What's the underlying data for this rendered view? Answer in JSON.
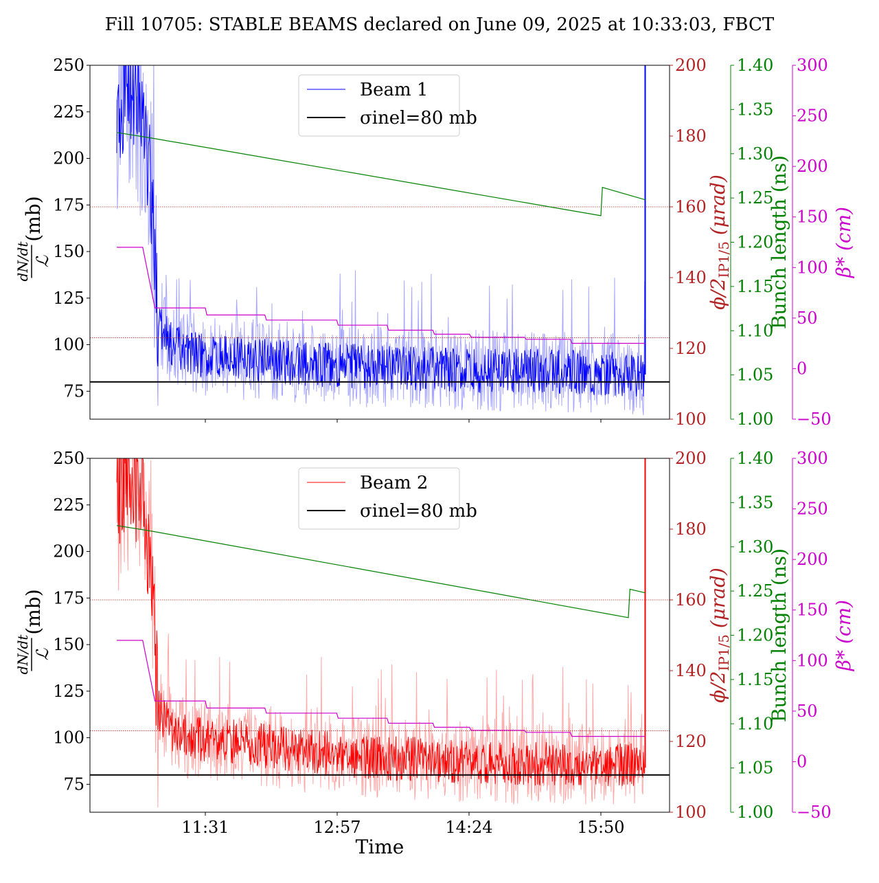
{
  "title": "Fill 10705: STABLE BEAMS declared on June 09, 2025 at 10:33:03, FBCT",
  "xlabel": "Time",
  "x_ticks": [
    "11:31",
    "12:57",
    "14:24",
    "15:50"
  ],
  "axes_labels": {
    "left_main": "(mb)",
    "left_frac_num": "dN/dt",
    "left_frac_den": "ℒ",
    "red": "ϕ/2",
    "red_sub": "IP1/5",
    "red_unit": " (μrad)",
    "green": "Bunch length (ns)",
    "magenta": "β* (cm)"
  },
  "y_ticks_left": [
    "75",
    "100",
    "125",
    "150",
    "175",
    "200",
    "225",
    "250"
  ],
  "y_ticks_red": [
    "100",
    "120",
    "140",
    "160",
    "180",
    "200"
  ],
  "y_ticks_green": [
    "1.00",
    "1.05",
    "1.10",
    "1.15",
    "1.20",
    "1.25",
    "1.30",
    "1.35",
    "1.40"
  ],
  "y_ticks_magenta": [
    "−50",
    "0",
    "50",
    "100",
    "150",
    "200",
    "250",
    "300"
  ],
  "colors": {
    "beam1": "#0000ff",
    "beam2": "#ff0000",
    "reference": "#000000",
    "crossing_angle": "#b22222",
    "bunch_length": "#008000",
    "beta_star": "#cc00cc"
  },
  "chart_data": [
    {
      "type": "line",
      "panel": "top",
      "xlabel": "",
      "ylim": [
        60,
        250
      ],
      "x_range": [
        "10:33",
        "16:20"
      ],
      "legend_position": "upper center",
      "legend": [
        "Beam 1",
        "σinel=80 mb"
      ],
      "series": [
        {
          "name": "Beam 1",
          "color": "#0000ff",
          "x": [
            "10:33",
            "10:40",
            "10:48",
            "10:55",
            "11:00",
            "11:10",
            "11:20",
            "11:31",
            "12:00",
            "12:30",
            "12:57",
            "13:30",
            "14:00",
            "14:24",
            "15:00",
            "15:30",
            "15:50",
            "16:10",
            "16:19"
          ],
          "values": [
            215,
            240,
            225,
            190,
            110,
            100,
            96,
            94,
            92,
            90,
            89,
            88,
            87,
            86,
            86,
            85,
            85,
            84,
            84
          ]
        },
        {
          "name": "σinel=80 mb",
          "color": "#000000",
          "constant": 80
        },
        {
          "axis": "crossing_angle_urad",
          "color": "#b22222",
          "constant": 160
        },
        {
          "axis": "crossing_angle_urad",
          "color": "#b22222",
          "constant": 123
        },
        {
          "axis": "bunch_length_ns",
          "color": "#008000",
          "x": [
            "10:33",
            "10:55",
            "15:50",
            "15:51",
            "16:19"
          ],
          "values": [
            1.324,
            1.318,
            1.23,
            1.262,
            1.248
          ]
        },
        {
          "axis": "beta_star_cm",
          "color": "#cc00cc",
          "x": [
            "10:33",
            "10:50",
            "10:58",
            "11:31",
            "11:32",
            "12:10",
            "12:11",
            "12:57",
            "12:58",
            "13:30",
            "13:31",
            "14:00",
            "14:01",
            "14:24",
            "14:25",
            "15:00",
            "15:01",
            "15:30",
            "15:31",
            "16:19"
          ],
          "values": [
            120,
            120,
            60,
            60,
            53,
            53,
            48,
            48,
            43,
            43,
            38,
            38,
            34,
            34,
            31,
            31,
            29,
            29,
            25,
            25
          ]
        }
      ]
    },
    {
      "type": "line",
      "panel": "bottom",
      "xlabel": "Time",
      "ylim": [
        60,
        250
      ],
      "x_range": [
        "10:33",
        "16:20"
      ],
      "legend_position": "upper center",
      "legend": [
        "Beam 2",
        "σinel=80 mb"
      ],
      "series": [
        {
          "name": "Beam 2",
          "color": "#ff0000",
          "x": [
            "10:33",
            "10:40",
            "10:48",
            "10:55",
            "11:00",
            "11:10",
            "11:20",
            "11:31",
            "12:00",
            "12:30",
            "12:57",
            "13:30",
            "14:00",
            "14:24",
            "15:00",
            "15:30",
            "15:50",
            "16:10",
            "16:19"
          ],
          "values": [
            230,
            245,
            230,
            200,
            115,
            104,
            100,
            99,
            97,
            93,
            91,
            89,
            88,
            87,
            86,
            86,
            85,
            85,
            92
          ]
        },
        {
          "name": "σinel=80 mb",
          "color": "#000000",
          "constant": 80
        },
        {
          "axis": "crossing_angle_urad",
          "color": "#b22222",
          "constant": 160
        },
        {
          "axis": "crossing_angle_urad",
          "color": "#b22222",
          "constant": 123
        },
        {
          "axis": "bunch_length_ns",
          "color": "#008000",
          "x": [
            "10:33",
            "10:55",
            "16:08",
            "16:09",
            "16:19"
          ],
          "values": [
            1.324,
            1.318,
            1.22,
            1.252,
            1.248
          ]
        },
        {
          "axis": "beta_star_cm",
          "color": "#cc00cc",
          "x": [
            "10:33",
            "10:50",
            "10:58",
            "11:31",
            "11:32",
            "12:10",
            "12:11",
            "12:57",
            "12:58",
            "13:30",
            "13:31",
            "14:00",
            "14:01",
            "14:24",
            "14:25",
            "15:00",
            "15:01",
            "15:30",
            "15:31",
            "16:19"
          ],
          "values": [
            120,
            120,
            60,
            60,
            53,
            53,
            48,
            48,
            43,
            43,
            38,
            38,
            34,
            34,
            31,
            31,
            29,
            29,
            25,
            25
          ]
        }
      ]
    }
  ]
}
